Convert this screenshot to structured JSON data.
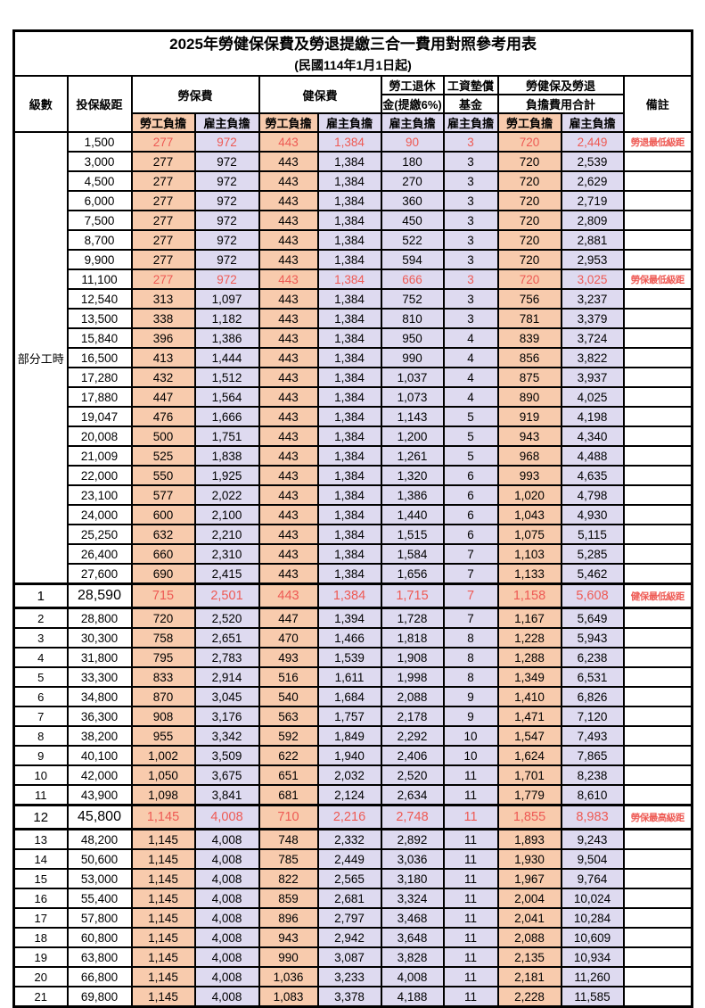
{
  "title": "2025年勞健保保費及勞退提繳三合一費用對照參考用表",
  "subtitle": "(民國114年1月1日起)",
  "columns": {
    "level": "級數",
    "bracket": "投保級距",
    "labor": "勞保費",
    "health": "健保費",
    "pension_line1": "勞工退休",
    "pension_line2": "金(提繳6%)",
    "wagefund_line1": "工資墊償",
    "wagefund_line2": "基金",
    "total_line1": "勞健保及勞退",
    "total_line2": "負擔費用合計",
    "employee": "勞工負擔",
    "employer": "雇主負擔",
    "note": "備註"
  },
  "part_time_label": "部分工時",
  "colors": {
    "employee_column_bg": "#F8CBAD",
    "employer_column_bg": "#DEDAF0",
    "highlight_text": "#EE5A54",
    "grid": "#000000"
  },
  "rows": [
    {
      "level": "",
      "salary": "1,500",
      "values": [
        "277",
        "972",
        "443",
        "1,384",
        "90",
        "3",
        "720",
        "2,449"
      ],
      "note": "勞退最低級距",
      "hl": true,
      "big": false
    },
    {
      "level": "",
      "salary": "3,000",
      "values": [
        "277",
        "972",
        "443",
        "1,384",
        "180",
        "3",
        "720",
        "2,539"
      ],
      "note": "",
      "hl": false,
      "big": false
    },
    {
      "level": "",
      "salary": "4,500",
      "values": [
        "277",
        "972",
        "443",
        "1,384",
        "270",
        "3",
        "720",
        "2,629"
      ],
      "note": "",
      "hl": false,
      "big": false
    },
    {
      "level": "",
      "salary": "6,000",
      "values": [
        "277",
        "972",
        "443",
        "1,384",
        "360",
        "3",
        "720",
        "2,719"
      ],
      "note": "",
      "hl": false,
      "big": false
    },
    {
      "level": "",
      "salary": "7,500",
      "values": [
        "277",
        "972",
        "443",
        "1,384",
        "450",
        "3",
        "720",
        "2,809"
      ],
      "note": "",
      "hl": false,
      "big": false
    },
    {
      "level": "",
      "salary": "8,700",
      "values": [
        "277",
        "972",
        "443",
        "1,384",
        "522",
        "3",
        "720",
        "2,881"
      ],
      "note": "",
      "hl": false,
      "big": false
    },
    {
      "level": "",
      "salary": "9,900",
      "values": [
        "277",
        "972",
        "443",
        "1,384",
        "594",
        "3",
        "720",
        "2,953"
      ],
      "note": "",
      "hl": false,
      "big": false
    },
    {
      "level": "",
      "salary": "11,100",
      "values": [
        "277",
        "972",
        "443",
        "1,384",
        "666",
        "3",
        "720",
        "3,025"
      ],
      "note": "勞保最低級距",
      "hl": true,
      "big": false
    },
    {
      "level": "",
      "salary": "12,540",
      "values": [
        "313",
        "1,097",
        "443",
        "1,384",
        "752",
        "3",
        "756",
        "3,237"
      ],
      "note": "",
      "hl": false,
      "big": false
    },
    {
      "level": "",
      "salary": "13,500",
      "values": [
        "338",
        "1,182",
        "443",
        "1,384",
        "810",
        "3",
        "781",
        "3,379"
      ],
      "note": "",
      "hl": false,
      "big": false
    },
    {
      "level": "",
      "salary": "15,840",
      "values": [
        "396",
        "1,386",
        "443",
        "1,384",
        "950",
        "4",
        "839",
        "3,724"
      ],
      "note": "",
      "hl": false,
      "big": false
    },
    {
      "level": "",
      "salary": "16,500",
      "values": [
        "413",
        "1,444",
        "443",
        "1,384",
        "990",
        "4",
        "856",
        "3,822"
      ],
      "note": "",
      "hl": false,
      "big": false
    },
    {
      "level": "",
      "salary": "17,280",
      "values": [
        "432",
        "1,512",
        "443",
        "1,384",
        "1,037",
        "4",
        "875",
        "3,937"
      ],
      "note": "",
      "hl": false,
      "big": false
    },
    {
      "level": "",
      "salary": "17,880",
      "values": [
        "447",
        "1,564",
        "443",
        "1,384",
        "1,073",
        "4",
        "890",
        "4,025"
      ],
      "note": "",
      "hl": false,
      "big": false
    },
    {
      "level": "",
      "salary": "19,047",
      "values": [
        "476",
        "1,666",
        "443",
        "1,384",
        "1,143",
        "5",
        "919",
        "4,198"
      ],
      "note": "",
      "hl": false,
      "big": false
    },
    {
      "level": "",
      "salary": "20,008",
      "values": [
        "500",
        "1,751",
        "443",
        "1,384",
        "1,200",
        "5",
        "943",
        "4,340"
      ],
      "note": "",
      "hl": false,
      "big": false
    },
    {
      "level": "",
      "salary": "21,009",
      "values": [
        "525",
        "1,838",
        "443",
        "1,384",
        "1,261",
        "5",
        "968",
        "4,488"
      ],
      "note": "",
      "hl": false,
      "big": false
    },
    {
      "level": "",
      "salary": "22,000",
      "values": [
        "550",
        "1,925",
        "443",
        "1,384",
        "1,320",
        "6",
        "993",
        "4,635"
      ],
      "note": "",
      "hl": false,
      "big": false
    },
    {
      "level": "",
      "salary": "23,100",
      "values": [
        "577",
        "2,022",
        "443",
        "1,384",
        "1,386",
        "6",
        "1,020",
        "4,798"
      ],
      "note": "",
      "hl": false,
      "big": false
    },
    {
      "level": "",
      "salary": "24,000",
      "values": [
        "600",
        "2,100",
        "443",
        "1,384",
        "1,440",
        "6",
        "1,043",
        "4,930"
      ],
      "note": "",
      "hl": false,
      "big": false
    },
    {
      "level": "",
      "salary": "25,250",
      "values": [
        "632",
        "2,210",
        "443",
        "1,384",
        "1,515",
        "6",
        "1,075",
        "5,115"
      ],
      "note": "",
      "hl": false,
      "big": false
    },
    {
      "level": "",
      "salary": "26,400",
      "values": [
        "660",
        "2,310",
        "443",
        "1,384",
        "1,584",
        "7",
        "1,103",
        "5,285"
      ],
      "note": "",
      "hl": false,
      "big": false
    },
    {
      "level": "",
      "salary": "27,600",
      "values": [
        "690",
        "2,415",
        "443",
        "1,384",
        "1,656",
        "7",
        "1,133",
        "5,462"
      ],
      "note": "",
      "hl": false,
      "big": false
    },
    {
      "level": "1",
      "salary": "28,590",
      "values": [
        "715",
        "2,501",
        "443",
        "1,384",
        "1,715",
        "7",
        "1,158",
        "5,608"
      ],
      "note": "健保最低級距",
      "hl": true,
      "big": true
    },
    {
      "level": "2",
      "salary": "28,800",
      "values": [
        "720",
        "2,520",
        "447",
        "1,394",
        "1,728",
        "7",
        "1,167",
        "5,649"
      ],
      "note": "",
      "hl": false,
      "big": false
    },
    {
      "level": "3",
      "salary": "30,300",
      "values": [
        "758",
        "2,651",
        "470",
        "1,466",
        "1,818",
        "8",
        "1,228",
        "5,943"
      ],
      "note": "",
      "hl": false,
      "big": false
    },
    {
      "level": "4",
      "salary": "31,800",
      "values": [
        "795",
        "2,783",
        "493",
        "1,539",
        "1,908",
        "8",
        "1,288",
        "6,238"
      ],
      "note": "",
      "hl": false,
      "big": false
    },
    {
      "level": "5",
      "salary": "33,300",
      "values": [
        "833",
        "2,914",
        "516",
        "1,611",
        "1,998",
        "8",
        "1,349",
        "6,531"
      ],
      "note": "",
      "hl": false,
      "big": false
    },
    {
      "level": "6",
      "salary": "34,800",
      "values": [
        "870",
        "3,045",
        "540",
        "1,684",
        "2,088",
        "9",
        "1,410",
        "6,826"
      ],
      "note": "",
      "hl": false,
      "big": false
    },
    {
      "level": "7",
      "salary": "36,300",
      "values": [
        "908",
        "3,176",
        "563",
        "1,757",
        "2,178",
        "9",
        "1,471",
        "7,120"
      ],
      "note": "",
      "hl": false,
      "big": false
    },
    {
      "level": "8",
      "salary": "38,200",
      "values": [
        "955",
        "3,342",
        "592",
        "1,849",
        "2,292",
        "10",
        "1,547",
        "7,493"
      ],
      "note": "",
      "hl": false,
      "big": false
    },
    {
      "level": "9",
      "salary": "40,100",
      "values": [
        "1,002",
        "3,509",
        "622",
        "1,940",
        "2,406",
        "10",
        "1,624",
        "7,865"
      ],
      "note": "",
      "hl": false,
      "big": false
    },
    {
      "level": "10",
      "salary": "42,000",
      "values": [
        "1,050",
        "3,675",
        "651",
        "2,032",
        "2,520",
        "11",
        "1,701",
        "8,238"
      ],
      "note": "",
      "hl": false,
      "big": false
    },
    {
      "level": "11",
      "salary": "43,900",
      "values": [
        "1,098",
        "3,841",
        "681",
        "2,124",
        "2,634",
        "11",
        "1,779",
        "8,610"
      ],
      "note": "",
      "hl": false,
      "big": false
    },
    {
      "level": "12",
      "salary": "45,800",
      "values": [
        "1,145",
        "4,008",
        "710",
        "2,216",
        "2,748",
        "11",
        "1,855",
        "8,983"
      ],
      "note": "勞保最高級距",
      "hl": true,
      "big": true
    },
    {
      "level": "13",
      "salary": "48,200",
      "values": [
        "1,145",
        "4,008",
        "748",
        "2,332",
        "2,892",
        "11",
        "1,893",
        "9,243"
      ],
      "note": "",
      "hl": false,
      "big": false
    },
    {
      "level": "14",
      "salary": "50,600",
      "values": [
        "1,145",
        "4,008",
        "785",
        "2,449",
        "3,036",
        "11",
        "1,930",
        "9,504"
      ],
      "note": "",
      "hl": false,
      "big": false
    },
    {
      "level": "15",
      "salary": "53,000",
      "values": [
        "1,145",
        "4,008",
        "822",
        "2,565",
        "3,180",
        "11",
        "1,967",
        "9,764"
      ],
      "note": "",
      "hl": false,
      "big": false
    },
    {
      "level": "16",
      "salary": "55,400",
      "values": [
        "1,145",
        "4,008",
        "859",
        "2,681",
        "3,324",
        "11",
        "2,004",
        "10,024"
      ],
      "note": "",
      "hl": false,
      "big": false
    },
    {
      "level": "17",
      "salary": "57,800",
      "values": [
        "1,145",
        "4,008",
        "896",
        "2,797",
        "3,468",
        "11",
        "2,041",
        "10,284"
      ],
      "note": "",
      "hl": false,
      "big": false
    },
    {
      "level": "18",
      "salary": "60,800",
      "values": [
        "1,145",
        "4,008",
        "943",
        "2,942",
        "3,648",
        "11",
        "2,088",
        "10,609"
      ],
      "note": "",
      "hl": false,
      "big": false
    },
    {
      "level": "19",
      "salary": "63,800",
      "values": [
        "1,145",
        "4,008",
        "990",
        "3,087",
        "3,828",
        "11",
        "2,135",
        "10,934"
      ],
      "note": "",
      "hl": false,
      "big": false
    },
    {
      "level": "20",
      "salary": "66,800",
      "values": [
        "1,145",
        "4,008",
        "1,036",
        "3,233",
        "4,008",
        "11",
        "2,181",
        "11,260"
      ],
      "note": "",
      "hl": false,
      "big": false
    },
    {
      "level": "21",
      "salary": "69,800",
      "values": [
        "1,145",
        "4,008",
        "1,083",
        "3,378",
        "4,188",
        "11",
        "2,228",
        "11,585"
      ],
      "note": "",
      "hl": false,
      "big": false
    }
  ]
}
